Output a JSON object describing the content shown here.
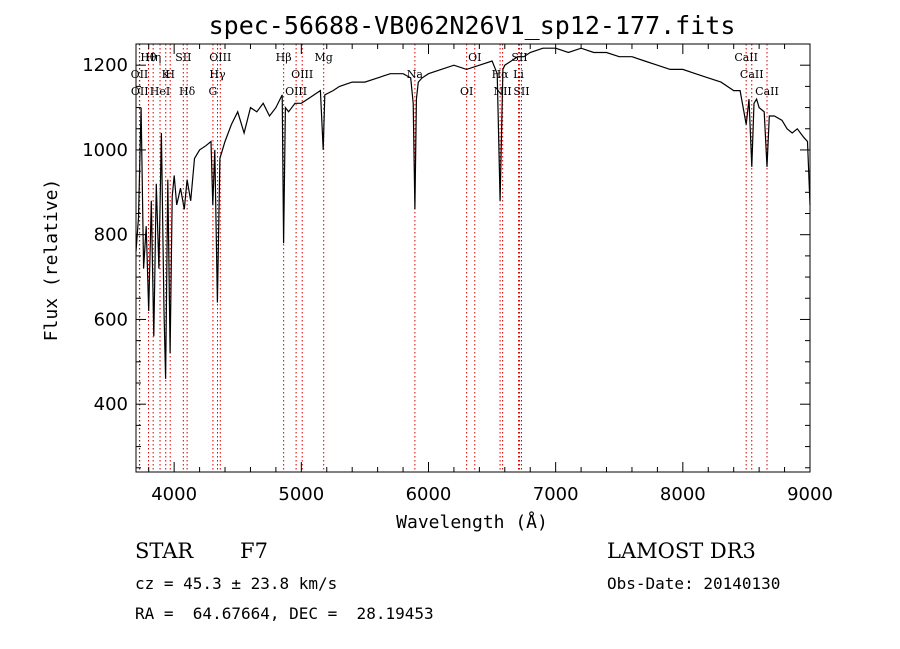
{
  "chart_data": {
    "type": "line",
    "title": "spec-56688-VB062N26V1_sp12-177.fits",
    "xlabel": "Wavelength (Å)",
    "ylabel": "Flux (relative)",
    "xlim": [
      3700,
      9000
    ],
    "ylim": [
      240,
      1250
    ],
    "xticks": [
      4000,
      5000,
      6000,
      7000,
      8000,
      9000
    ],
    "yticks": [
      400,
      600,
      800,
      1000,
      1200
    ],
    "series": [
      {
        "name": "flux",
        "x": [
          3700,
          3720,
          3740,
          3760,
          3780,
          3800,
          3820,
          3840,
          3860,
          3880,
          3900,
          3920,
          3933,
          3950,
          3968,
          3985,
          4000,
          4020,
          4050,
          4080,
          4102,
          4130,
          4160,
          4200,
          4250,
          4290,
          4304,
          4320,
          4340,
          4360,
          4400,
          4450,
          4500,
          4550,
          4600,
          4650,
          4700,
          4750,
          4800,
          4850,
          4861,
          4875,
          4900,
          4950,
          5000,
          5050,
          5100,
          5150,
          5172,
          5185,
          5250,
          5300,
          5400,
          5500,
          5600,
          5700,
          5800,
          5860,
          5880,
          5893,
          5905,
          5920,
          5950,
          6000,
          6100,
          6200,
          6300,
          6400,
          6500,
          6540,
          6563,
          6585,
          6600,
          6650,
          6700,
          6750,
          6800,
          6900,
          7000,
          7100,
          7200,
          7300,
          7400,
          7500,
          7600,
          7700,
          7800,
          7900,
          8000,
          8100,
          8200,
          8300,
          8400,
          8450,
          8498,
          8520,
          8542,
          8560,
          8580,
          8600,
          8640,
          8662,
          8680,
          8720,
          8780,
          8820,
          8860,
          8900,
          8950,
          8980,
          9000
        ],
        "values": [
          760,
          840,
          1100,
          720,
          820,
          620,
          880,
          560,
          920,
          720,
          1040,
          620,
          460,
          930,
          520,
          890,
          940,
          870,
          910,
          860,
          930,
          880,
          980,
          1000,
          1010,
          1020,
          870,
          1000,
          640,
          980,
          1020,
          1060,
          1090,
          1040,
          1100,
          1090,
          1110,
          1080,
          1100,
          1130,
          780,
          1100,
          1090,
          1110,
          1110,
          1120,
          1130,
          1140,
          1000,
          1130,
          1140,
          1150,
          1160,
          1160,
          1170,
          1180,
          1180,
          1170,
          1110,
          860,
          1120,
          1160,
          1170,
          1180,
          1190,
          1200,
          1190,
          1200,
          1210,
          1180,
          880,
          1190,
          1200,
          1210,
          1220,
          1220,
          1230,
          1240,
          1240,
          1230,
          1240,
          1230,
          1230,
          1220,
          1220,
          1210,
          1200,
          1190,
          1190,
          1180,
          1170,
          1160,
          1140,
          1140,
          1060,
          1120,
          960,
          1110,
          1120,
          1100,
          1090,
          960,
          1080,
          1080,
          1070,
          1050,
          1040,
          1050,
          1030,
          1020,
          870
        ]
      }
    ],
    "annotations": [
      {
        "label": "Hθ",
        "wavelength": 3798
      },
      {
        "label": "OII",
        "wavelength": 3727
      },
      {
        "label": "OII",
        "wavelength": 3729
      },
      {
        "label": "Hη",
        "wavelength": 3835
      },
      {
        "label": "K",
        "wavelength": 3934
      },
      {
        "label": "HeI",
        "wavelength": 3889
      },
      {
        "label": "SII",
        "wavelength": 4072
      },
      {
        "label": "H",
        "wavelength": 3969
      },
      {
        "label": "Hδ",
        "wavelength": 4102
      },
      {
        "label": "OIII",
        "wavelength": 4363
      },
      {
        "label": "Hγ",
        "wavelength": 4341
      },
      {
        "label": "G",
        "wavelength": 4305
      },
      {
        "label": "Hβ",
        "wavelength": 4861
      },
      {
        "label": "OIII",
        "wavelength": 5007
      },
      {
        "label": "OIII",
        "wavelength": 4959
      },
      {
        "label": "Mg",
        "wavelength": 5176
      },
      {
        "label": "Na",
        "wavelength": 5893
      },
      {
        "label": "OI",
        "wavelength": 6300
      },
      {
        "label": "OI",
        "wavelength": 6364
      },
      {
        "label": "Hα",
        "wavelength": 6563
      },
      {
        "label": "NII",
        "wavelength": 6583
      },
      {
        "label": "SII",
        "wavelength": 6716
      },
      {
        "label": "Li",
        "wavelength": 6708
      },
      {
        "label": "SII",
        "wavelength": 6731
      },
      {
        "label": "CaII",
        "wavelength": 8498
      },
      {
        "label": "CaII",
        "wavelength": 8542
      },
      {
        "label": "CaII",
        "wavelength": 8662
      }
    ]
  },
  "info": {
    "class_label": "STAR",
    "subclass": "F7",
    "survey": "LAMOST DR3",
    "cz": "cz = 45.3 ± 23.8 km/s",
    "obs_date": "Obs-Date: 20140130",
    "coords": "RA =  64.67664, DEC =  28.19453"
  },
  "colors": {
    "marker_line": "#cc0000",
    "spectrum": "#000000"
  }
}
